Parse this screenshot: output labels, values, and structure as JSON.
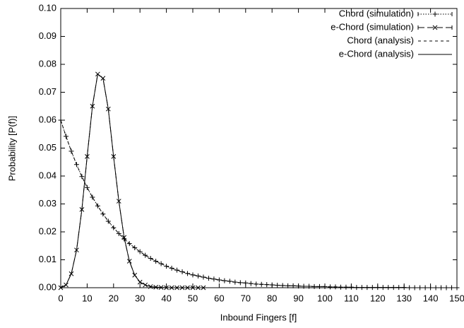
{
  "chart_data": {
    "type": "line",
    "xlabel": "Inbound Fingers [f]",
    "ylabel": "Probability [P(f)]",
    "legend": "upper right",
    "xlim": [
      0,
      150
    ],
    "ylim": [
      0,
      0.1
    ],
    "xticks": [
      0,
      10,
      20,
      30,
      40,
      50,
      60,
      70,
      80,
      90,
      100,
      110,
      120,
      130,
      140,
      150
    ],
    "yticks": [
      {
        "value": 0,
        "label": "0.00"
      },
      {
        "value": 0.01,
        "label": "0.01"
      },
      {
        "value": 0.02,
        "label": "0.02"
      },
      {
        "value": 0.03,
        "label": "0.03"
      },
      {
        "value": 0.04,
        "label": "0.04"
      },
      {
        "value": 0.05,
        "label": "0.05"
      },
      {
        "value": 0.06,
        "label": "0.06"
      },
      {
        "value": 0.07,
        "label": "0.07"
      },
      {
        "value": 0.08,
        "label": "0.08"
      },
      {
        "value": 0.09,
        "label": "0.09"
      },
      {
        "value": 0.1,
        "label": "0.10"
      }
    ],
    "x": [
      0,
      2,
      4,
      6,
      8,
      10,
      12,
      14,
      16,
      18,
      20,
      22,
      24,
      26,
      28,
      30,
      32,
      34,
      36,
      38,
      40,
      42,
      44,
      46,
      48,
      50,
      52,
      54,
      56,
      58,
      60,
      62,
      64,
      66,
      68,
      70,
      72,
      74,
      76,
      78,
      80,
      82,
      84,
      86,
      88,
      90,
      92,
      94,
      96,
      98,
      100,
      102,
      104,
      106,
      108,
      110,
      112,
      114,
      116,
      118,
      120,
      122,
      124,
      126,
      128,
      130,
      132,
      134,
      136,
      138,
      140,
      142,
      144,
      146,
      148,
      150
    ],
    "series": [
      {
        "name": "Chord (simulation)",
        "color": "#000000",
        "line_style": "dotted",
        "marker": "plus",
        "values": [
          0.06,
          0.0542,
          0.0489,
          0.0441,
          0.0398,
          0.0359,
          0.0324,
          0.0293,
          0.0264,
          0.0238,
          0.0215,
          0.0194,
          0.0175,
          0.0158,
          0.0143,
          0.0129,
          0.0116,
          0.0105,
          0.0095,
          0.0086,
          0.0077,
          0.007,
          0.0063,
          0.0057,
          0.0051,
          0.0046,
          0.0042,
          0.0038,
          0.0034,
          0.0031,
          0.0028,
          0.0025,
          0.0023,
          0.002,
          0.0018,
          0.0017,
          0.0015,
          0.0013,
          0.0012,
          0.0011,
          0.001,
          0.0009,
          0.0008,
          0.0007,
          0.0007,
          0.0006,
          0.0005,
          0.0005,
          0.0004,
          0.0004,
          0.0004,
          0.0003,
          0.0003,
          0.0002,
          0.0002,
          0.0002,
          0.0001,
          0.0001,
          0.0001,
          0.0001,
          0.0001,
          0.0001,
          0.0001,
          0.0001,
          0.0001,
          0.0001,
          0,
          0,
          0,
          0,
          0,
          0,
          0,
          0,
          0,
          0
        ]
      },
      {
        "name": "e-Chord (simulation)",
        "color": "#000000",
        "line_style": "longdash",
        "marker": "cross",
        "values": [
          0,
          0.001,
          0.005,
          0.0135,
          0.028,
          0.047,
          0.065,
          0.0765,
          0.075,
          0.064,
          0.047,
          0.031,
          0.018,
          0.0095,
          0.0045,
          0.002,
          0.001,
          0.0004,
          0.0002,
          0.0001,
          0,
          0,
          0,
          0,
          0,
          0,
          0,
          0,
          null,
          null,
          null,
          null,
          null,
          null,
          null,
          null,
          null,
          null,
          null,
          null,
          null,
          null,
          null,
          null,
          null,
          null,
          null,
          null,
          null,
          null,
          null,
          null,
          null,
          null,
          null,
          null,
          null,
          null,
          null,
          null,
          null,
          null,
          null,
          null,
          null,
          null,
          null,
          null,
          null,
          null,
          null,
          null,
          null,
          null,
          null,
          null
        ]
      },
      {
        "name": "Chord (analysis)",
        "color": "#000000",
        "line_style": "dashed",
        "values": [
          0.06,
          0.0542,
          0.0489,
          0.0441,
          0.0398,
          0.0359,
          0.0324,
          0.0293,
          0.0264,
          0.0238,
          0.0215,
          0.0194,
          0.0175,
          0.0158,
          0.0143,
          0.0129,
          0.0116,
          0.0105,
          0.0095,
          0.0086,
          0.0077,
          0.007,
          0.0063,
          0.0057,
          0.0051,
          0.0046,
          0.0042,
          0.0038,
          0.0034,
          0.0031,
          0.0028,
          0.0025,
          0.0023,
          0.002,
          0.0018,
          0.0017,
          0.0015,
          0.0013,
          0.0012,
          0.0011,
          0.001,
          0.0009,
          0.0008,
          0.0007,
          0.0007,
          0.0006,
          0.0005,
          0.0005,
          0.0004,
          0.0004,
          0.0004,
          0.0003,
          0.0003,
          0.0002,
          0.0002,
          0.0002,
          0.0001,
          0.0001,
          0.0001,
          0.0001,
          0.0001,
          0.0001,
          0.0001,
          0.0001,
          0.0001,
          0.0001,
          0,
          0,
          0,
          0,
          0,
          0,
          0,
          0,
          0,
          0
        ]
      },
      {
        "name": "e-Chord (analysis)",
        "color": "#000000",
        "line_style": "solid",
        "values": [
          0,
          0.001,
          0.005,
          0.0135,
          0.028,
          0.047,
          0.065,
          0.0765,
          0.075,
          0.064,
          0.047,
          0.031,
          0.018,
          0.0095,
          0.0045,
          0.002,
          0.001,
          0.0004,
          0.0002,
          0.0001,
          0,
          0,
          0,
          0,
          0,
          0,
          0,
          0,
          null,
          null,
          null,
          null,
          null,
          null,
          null,
          null,
          null,
          null,
          null,
          null,
          null,
          null,
          null,
          null,
          null,
          null,
          null,
          null,
          null,
          null,
          null,
          null,
          null,
          null,
          null,
          null,
          null,
          null,
          null,
          null,
          null,
          null,
          null,
          null,
          null,
          null,
          null,
          null,
          null,
          null,
          null,
          null,
          null,
          null,
          null,
          null
        ]
      }
    ]
  }
}
